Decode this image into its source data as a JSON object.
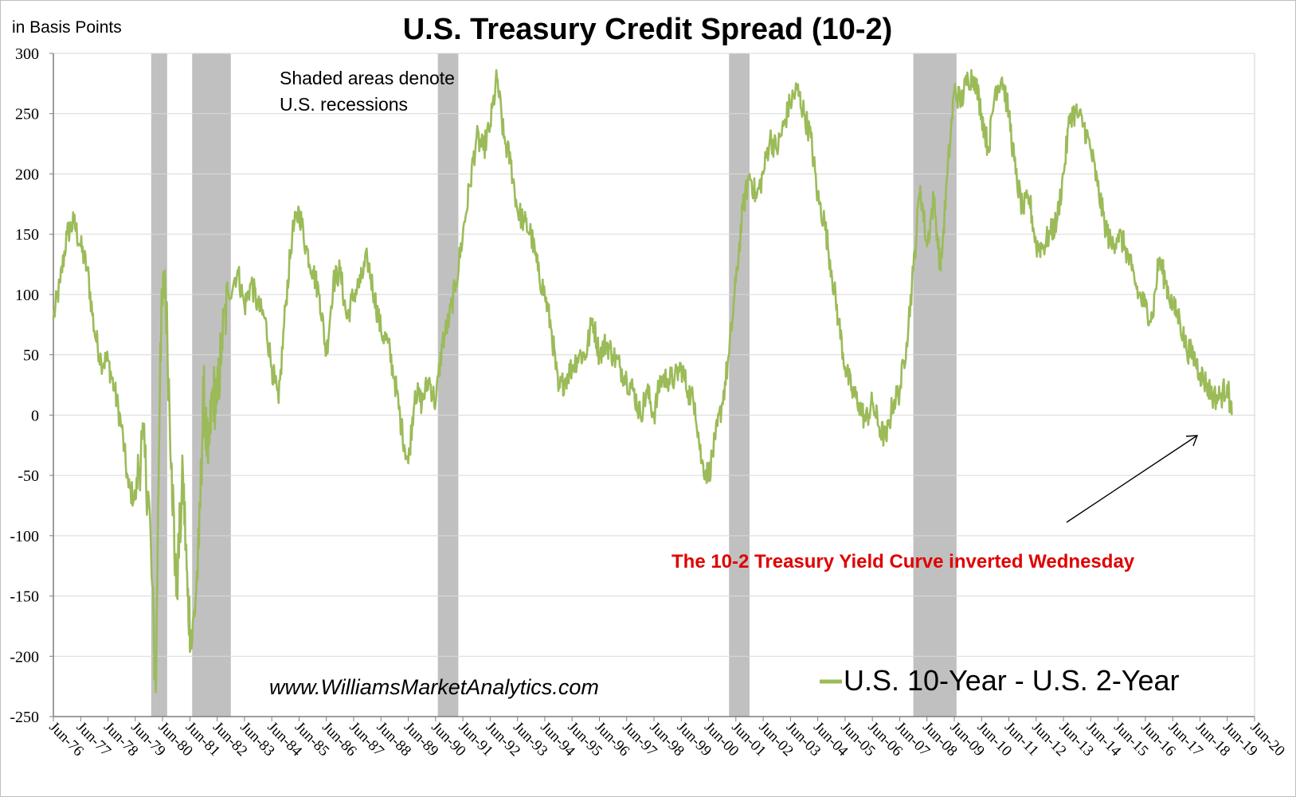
{
  "chart_data": {
    "type": "line",
    "title": "U.S. Treasury Credit Spread (10-2)",
    "ylabel": "in Basis Points",
    "xlabel": "",
    "ylim": [
      -250,
      300
    ],
    "xlim": [
      "1976-06",
      "2020-06"
    ],
    "yticks": [
      300,
      250,
      200,
      150,
      100,
      50,
      0,
      -50,
      -100,
      -150,
      -200,
      -250
    ],
    "xtick_labels": [
      "Jun-76",
      "Jun-77",
      "Jun-78",
      "Jun-79",
      "Jun-80",
      "Jun-81",
      "Jun-82",
      "Jun-83",
      "Jun-84",
      "Jun-85",
      "Jun-86",
      "Jun-87",
      "Jun-88",
      "Jun-89",
      "Jun-90",
      "Jun-91",
      "Jun-92",
      "Jun-93",
      "Jun-94",
      "Jun-95",
      "Jun-96",
      "Jun-97",
      "Jun-98",
      "Jun-99",
      "Jun-00",
      "Jun-01",
      "Jun-02",
      "Jun-03",
      "Jun-04",
      "Jun-05",
      "Jun-06",
      "Jun-07",
      "Jun-08",
      "Jun-09",
      "Jun-10",
      "Jun-11",
      "Jun-12",
      "Jun-13",
      "Jun-14",
      "Jun-15",
      "Jun-16",
      "Jun-17",
      "Jun-18",
      "Jun-19",
      "Jun-20"
    ],
    "grid": true,
    "legend_position": "bottom-right",
    "recessions": [
      {
        "start": "1980-01",
        "end": "1980-07"
      },
      {
        "start": "1981-07",
        "end": "1982-11"
      },
      {
        "start": "1990-07",
        "end": "1991-03"
      },
      {
        "start": "2001-03",
        "end": "2001-11"
      },
      {
        "start": "2007-12",
        "end": "2009-06"
      }
    ],
    "series": [
      {
        "name": "U.S. 10-Year - U.S. 2-Year",
        "color": "#9bbb59",
        "points": [
          [
            "1976-06",
            80
          ],
          [
            "1976-09",
            110
          ],
          [
            "1976-12",
            150
          ],
          [
            "1977-03",
            160
          ],
          [
            "1977-06",
            140
          ],
          [
            "1977-09",
            120
          ],
          [
            "1977-12",
            70
          ],
          [
            "1978-03",
            45
          ],
          [
            "1978-06",
            45
          ],
          [
            "1978-09",
            20
          ],
          [
            "1978-12",
            -10
          ],
          [
            "1979-03",
            -60
          ],
          [
            "1979-06",
            -70
          ],
          [
            "1979-09",
            -20
          ],
          [
            "1979-12",
            -70
          ],
          [
            "1980-03",
            -230
          ],
          [
            "1980-05",
            60
          ],
          [
            "1980-07",
            120
          ],
          [
            "1980-10",
            -40
          ],
          [
            "1980-12",
            -150
          ],
          [
            "1981-03",
            -50
          ],
          [
            "1981-05",
            -150
          ],
          [
            "1981-07",
            -190
          ],
          [
            "1981-10",
            -110
          ],
          [
            "1981-12",
            20
          ],
          [
            "1982-02",
            -40
          ],
          [
            "1982-04",
            20
          ],
          [
            "1982-06",
            10
          ],
          [
            "1982-08",
            60
          ],
          [
            "1982-11",
            100
          ],
          [
            "1983-03",
            120
          ],
          [
            "1983-06",
            90
          ],
          [
            "1983-09",
            110
          ],
          [
            "1983-12",
            90
          ],
          [
            "1984-03",
            80
          ],
          [
            "1984-06",
            40
          ],
          [
            "1984-09",
            10
          ],
          [
            "1984-12",
            90
          ],
          [
            "1985-03",
            150
          ],
          [
            "1985-06",
            170
          ],
          [
            "1985-09",
            140
          ],
          [
            "1985-12",
            120
          ],
          [
            "1986-03",
            100
          ],
          [
            "1986-06",
            50
          ],
          [
            "1986-09",
            110
          ],
          [
            "1986-12",
            120
          ],
          [
            "1987-03",
            80
          ],
          [
            "1987-06",
            100
          ],
          [
            "1987-09",
            110
          ],
          [
            "1987-12",
            130
          ],
          [
            "1988-03",
            100
          ],
          [
            "1988-06",
            70
          ],
          [
            "1988-09",
            60
          ],
          [
            "1988-12",
            30
          ],
          [
            "1989-03",
            -10
          ],
          [
            "1989-06",
            -40
          ],
          [
            "1989-09",
            20
          ],
          [
            "1989-12",
            10
          ],
          [
            "1990-03",
            30
          ],
          [
            "1990-06",
            10
          ],
          [
            "1990-09",
            60
          ],
          [
            "1990-12",
            80
          ],
          [
            "1991-03",
            110
          ],
          [
            "1991-06",
            150
          ],
          [
            "1991-09",
            190
          ],
          [
            "1991-12",
            230
          ],
          [
            "1992-03",
            220
          ],
          [
            "1992-06",
            240
          ],
          [
            "1992-09",
            280
          ],
          [
            "1992-12",
            230
          ],
          [
            "1993-03",
            210
          ],
          [
            "1993-06",
            170
          ],
          [
            "1993-09",
            160
          ],
          [
            "1993-12",
            150
          ],
          [
            "1994-03",
            120
          ],
          [
            "1994-06",
            100
          ],
          [
            "1994-09",
            70
          ],
          [
            "1994-12",
            20
          ],
          [
            "1995-03",
            30
          ],
          [
            "1995-06",
            40
          ],
          [
            "1995-09",
            50
          ],
          [
            "1995-12",
            50
          ],
          [
            "1996-03",
            80
          ],
          [
            "1996-06",
            50
          ],
          [
            "1996-09",
            60
          ],
          [
            "1996-12",
            50
          ],
          [
            "1997-03",
            40
          ],
          [
            "1997-06",
            30
          ],
          [
            "1997-09",
            20
          ],
          [
            "1997-12",
            0
          ],
          [
            "1998-03",
            20
          ],
          [
            "1998-06",
            0
          ],
          [
            "1998-09",
            30
          ],
          [
            "1998-12",
            30
          ],
          [
            "1999-03",
            30
          ],
          [
            "1999-06",
            40
          ],
          [
            "1999-09",
            20
          ],
          [
            "1999-12",
            10
          ],
          [
            "2000-03",
            -40
          ],
          [
            "2000-06",
            -50
          ],
          [
            "2000-09",
            -20
          ],
          [
            "2000-12",
            10
          ],
          [
            "2001-03",
            50
          ],
          [
            "2001-06",
            110
          ],
          [
            "2001-09",
            170
          ],
          [
            "2001-12",
            200
          ],
          [
            "2002-03",
            180
          ],
          [
            "2002-06",
            200
          ],
          [
            "2002-09",
            230
          ],
          [
            "2002-12",
            220
          ],
          [
            "2003-03",
            240
          ],
          [
            "2003-06",
            260
          ],
          [
            "2003-09",
            270
          ],
          [
            "2003-12",
            250
          ],
          [
            "2004-03",
            230
          ],
          [
            "2004-06",
            180
          ],
          [
            "2004-09",
            160
          ],
          [
            "2004-12",
            120
          ],
          [
            "2005-03",
            80
          ],
          [
            "2005-06",
            40
          ],
          [
            "2005-09",
            20
          ],
          [
            "2005-12",
            10
          ],
          [
            "2006-03",
            -5
          ],
          [
            "2006-06",
            10
          ],
          [
            "2006-09",
            -10
          ],
          [
            "2006-12",
            -20
          ],
          [
            "2007-03",
            10
          ],
          [
            "2007-06",
            20
          ],
          [
            "2007-09",
            60
          ],
          [
            "2007-12",
            120
          ],
          [
            "2008-03",
            190
          ],
          [
            "2008-06",
            140
          ],
          [
            "2008-09",
            180
          ],
          [
            "2008-12",
            120
          ],
          [
            "2009-03",
            200
          ],
          [
            "2009-06",
            270
          ],
          [
            "2009-09",
            260
          ],
          [
            "2009-12",
            280
          ],
          [
            "2010-03",
            280
          ],
          [
            "2010-06",
            250
          ],
          [
            "2010-09",
            220
          ],
          [
            "2010-12",
            270
          ],
          [
            "2011-03",
            280
          ],
          [
            "2011-06",
            250
          ],
          [
            "2011-09",
            200
          ],
          [
            "2011-12",
            170
          ],
          [
            "2012-03",
            180
          ],
          [
            "2012-06",
            140
          ],
          [
            "2012-09",
            140
          ],
          [
            "2012-12",
            150
          ],
          [
            "2013-03",
            160
          ],
          [
            "2013-06",
            200
          ],
          [
            "2013-09",
            250
          ],
          [
            "2013-12",
            250
          ],
          [
            "2014-03",
            240
          ],
          [
            "2014-06",
            220
          ],
          [
            "2014-09",
            190
          ],
          [
            "2014-12",
            160
          ],
          [
            "2015-03",
            140
          ],
          [
            "2015-06",
            150
          ],
          [
            "2015-09",
            140
          ],
          [
            "2015-12",
            120
          ],
          [
            "2016-03",
            100
          ],
          [
            "2016-06",
            90
          ],
          [
            "2016-09",
            80
          ],
          [
            "2016-12",
            130
          ],
          [
            "2017-03",
            110
          ],
          [
            "2017-06",
            90
          ],
          [
            "2017-09",
            80
          ],
          [
            "2017-12",
            55
          ],
          [
            "2018-03",
            50
          ],
          [
            "2018-06",
            35
          ],
          [
            "2018-09",
            25
          ],
          [
            "2018-12",
            15
          ],
          [
            "2019-03",
            15
          ],
          [
            "2019-06",
            25
          ],
          [
            "2019-08",
            0
          ]
        ]
      }
    ],
    "annotations": [
      {
        "text": "Shaded areas denote",
        "color": "#000000"
      },
      {
        "text": "U.S. recessions",
        "color": "#000000"
      },
      {
        "text": "The 10-2 Treasury Yield Curve inverted Wednesday",
        "color": "#e00000"
      },
      {
        "text": "www.WilliamsMarketAnalytics.com",
        "color": "#000000"
      }
    ],
    "colors": {
      "line": "#9bbb59",
      "recession": "#c0c0c0",
      "grid": "#d9d9d9",
      "annotation_red": "#e00000"
    }
  }
}
